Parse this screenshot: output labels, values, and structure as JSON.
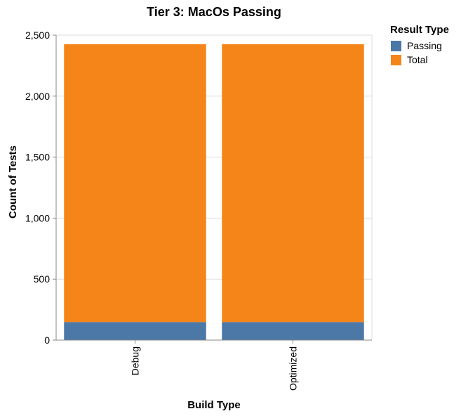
{
  "chart_data": {
    "type": "bar",
    "stacked": true,
    "title": "Tier 3: MacOs Passing",
    "xlabel": "Build Type",
    "ylabel": "Count of Tests",
    "categories": [
      "Debug",
      "Optimized"
    ],
    "series": [
      {
        "name": "Passing",
        "color": "#4c78a8",
        "values": [
          148,
          148
        ]
      },
      {
        "name": "Total",
        "color": "#f58518",
        "values": [
          2278,
          2278
        ]
      }
    ],
    "ylim": [
      0,
      2500
    ],
    "yticks": [
      0,
      500,
      1000,
      1500,
      2000,
      2500
    ],
    "ytick_labels": [
      "0",
      "500",
      "1,000",
      "1,500",
      "2,000",
      "2,500"
    ],
    "legend_title": "Result Type",
    "legend_position": "top-right",
    "grid": true
  }
}
